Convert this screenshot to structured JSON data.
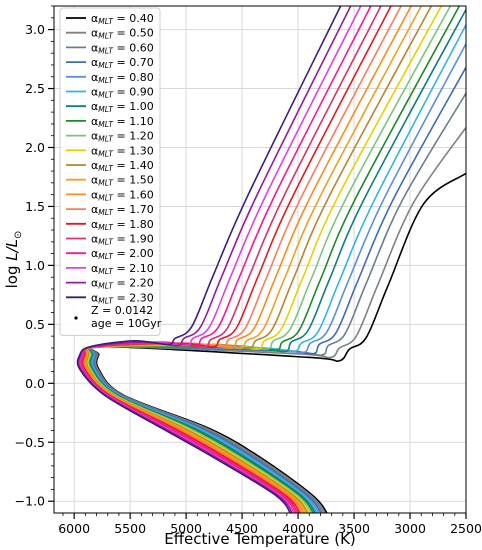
{
  "chart_data": {
    "type": "line",
    "xlabel": "Effective Temperature (K)",
    "ylabel": "log L/L_sun",
    "xlim": [
      6180,
      2500
    ],
    "ylim": [
      -1.1,
      3.2
    ],
    "x_reversed": true,
    "grid": true,
    "legend_position": "top-left",
    "x_ticks": [
      6000,
      5500,
      5000,
      4500,
      4000,
      3500,
      3000,
      2500
    ],
    "y_ticks": [
      -1.0,
      -0.5,
      0.0,
      0.5,
      1.0,
      1.5,
      2.0,
      2.5,
      3.0
    ],
    "x_tick_labels": [
      "6000",
      "5500",
      "5000",
      "4500",
      "4000",
      "3500",
      "3000",
      "2500"
    ],
    "y_tick_labels": [
      "−1.0",
      "−0.5",
      "0.0",
      "0.5",
      "1.0",
      "1.5",
      "2.0",
      "2.5",
      "3.0"
    ],
    "annotation": {
      "text_line1": "Z = 0.0142",
      "text_line2": "age = 10Gyr"
    },
    "series": [
      {
        "name": "0.40",
        "alpha": 0.4,
        "color": "#000000",
        "ms_top_teff": 3730,
        "ms_top_L": 0.17,
        "hook_teff": 3575,
        "hook_L": 0.17,
        "base_teff": 3500,
        "base_L": 0.27,
        "rgb_top_teff": 2500,
        "rgb_top_L": 1.78
      },
      {
        "name": "0.50",
        "alpha": 0.5,
        "color": "#808080",
        "ms_top_teff": 3830,
        "ms_top_L": 0.2,
        "hook_teff": 3650,
        "hook_L": 0.2,
        "base_teff": 3590,
        "base_L": 0.28,
        "rgb_top_teff": 2500,
        "rgb_top_L": 2.17
      },
      {
        "name": "0.60",
        "alpha": 0.6,
        "color": "#6a7e8c",
        "ms_top_teff": 3920,
        "ms_top_L": 0.22,
        "hook_teff": 3730,
        "hook_L": 0.22,
        "base_teff": 3690,
        "base_L": 0.3,
        "rgb_top_teff": 2500,
        "rgb_top_L": 2.46
      },
      {
        "name": "0.70",
        "alpha": 0.7,
        "color": "#3c6db3",
        "ms_top_teff": 4000,
        "ms_top_L": 0.23,
        "hook_teff": 3810,
        "hook_L": 0.23,
        "base_teff": 3770,
        "base_L": 0.31,
        "rgb_top_teff": 2500,
        "rgb_top_L": 2.68
      },
      {
        "name": "0.80",
        "alpha": 0.8,
        "color": "#5a8fe0",
        "ms_top_teff": 4090,
        "ms_top_L": 0.24,
        "hook_teff": 3900,
        "hook_L": 0.24,
        "base_teff": 3850,
        "base_L": 0.32,
        "rgb_top_teff": 2500,
        "rgb_top_L": 2.88
      },
      {
        "name": "0.90",
        "alpha": 0.9,
        "color": "#2fb4e8",
        "ms_top_teff": 4170,
        "ms_top_L": 0.25,
        "hook_teff": 3980,
        "hook_L": 0.25,
        "base_teff": 3930,
        "base_L": 0.32,
        "rgb_top_teff": 2500,
        "rgb_top_L": 3.04
      },
      {
        "name": "1.00",
        "alpha": 1.0,
        "color": "#0d7f7f",
        "ms_top_teff": 4250,
        "ms_top_L": 0.25,
        "hook_teff": 4060,
        "hook_L": 0.25,
        "base_teff": 4020,
        "base_L": 0.33,
        "rgb_top_teff": 2500,
        "rgb_top_L": 3.17
      },
      {
        "name": "1.10",
        "alpha": 1.1,
        "color": "#1f8a2a",
        "ms_top_teff": 4330,
        "ms_top_L": 0.26,
        "hook_teff": 4140,
        "hook_L": 0.26,
        "base_teff": 4100,
        "base_L": 0.33,
        "rgb_top_teff": 2560,
        "rgb_top_L": 3.2
      },
      {
        "name": "1.20",
        "alpha": 1.2,
        "color": "#7cc67c",
        "ms_top_teff": 4410,
        "ms_top_L": 0.27,
        "hook_teff": 4220,
        "hook_L": 0.27,
        "base_teff": 4180,
        "base_L": 0.34,
        "rgb_top_teff": 2640,
        "rgb_top_L": 3.2
      },
      {
        "name": "1.30",
        "alpha": 1.3,
        "color": "#e6d200",
        "ms_top_teff": 4490,
        "ms_top_L": 0.27,
        "hook_teff": 4300,
        "hook_L": 0.27,
        "base_teff": 4260,
        "base_L": 0.34,
        "rgb_top_teff": 2720,
        "rgb_top_L": 3.2
      },
      {
        "name": "1.40",
        "alpha": 1.4,
        "color": "#b8862e",
        "ms_top_teff": 4570,
        "ms_top_L": 0.28,
        "hook_teff": 4380,
        "hook_L": 0.28,
        "base_teff": 4340,
        "base_L": 0.34,
        "rgb_top_teff": 2810,
        "rgb_top_L": 3.2
      },
      {
        "name": "1.50",
        "alpha": 1.5,
        "color": "#f0a020",
        "ms_top_teff": 4650,
        "ms_top_L": 0.28,
        "hook_teff": 4460,
        "hook_L": 0.28,
        "base_teff": 4420,
        "base_L": 0.34,
        "rgb_top_teff": 2900,
        "rgb_top_L": 3.2
      },
      {
        "name": "1.60",
        "alpha": 1.6,
        "color": "#ff8a1a",
        "ms_top_teff": 4730,
        "ms_top_L": 0.28,
        "hook_teff": 4540,
        "hook_L": 0.28,
        "base_teff": 4500,
        "base_L": 0.35,
        "rgb_top_teff": 2990,
        "rgb_top_L": 3.2
      },
      {
        "name": "1.70",
        "alpha": 1.7,
        "color": "#ff7a5a",
        "ms_top_teff": 4810,
        "ms_top_L": 0.29,
        "hook_teff": 4620,
        "hook_L": 0.29,
        "base_teff": 4580,
        "base_L": 0.35,
        "rgb_top_teff": 3080,
        "rgb_top_L": 3.2
      },
      {
        "name": "1.80",
        "alpha": 1.8,
        "color": "#e8181e",
        "ms_top_teff": 4890,
        "ms_top_L": 0.29,
        "hook_teff": 4700,
        "hook_L": 0.29,
        "base_teff": 4660,
        "base_L": 0.35,
        "rgb_top_teff": 3170,
        "rgb_top_L": 3.2
      },
      {
        "name": "1.90",
        "alpha": 1.9,
        "color": "#e0306a",
        "ms_top_teff": 4970,
        "ms_top_L": 0.29,
        "hook_teff": 4780,
        "hook_L": 0.29,
        "base_teff": 4740,
        "base_L": 0.35,
        "rgb_top_teff": 3260,
        "rgb_top_L": 3.2
      },
      {
        "name": "2.00",
        "alpha": 2.0,
        "color": "#ff1493",
        "ms_top_teff": 5050,
        "ms_top_L": 0.3,
        "hook_teff": 4860,
        "hook_L": 0.3,
        "base_teff": 4820,
        "base_L": 0.36,
        "rgb_top_teff": 3350,
        "rgb_top_L": 3.2
      },
      {
        "name": "2.10",
        "alpha": 2.1,
        "color": "#e040e0",
        "ms_top_teff": 5130,
        "ms_top_L": 0.3,
        "hook_teff": 4940,
        "hook_L": 0.3,
        "base_teff": 4900,
        "base_L": 0.36,
        "rgb_top_teff": 3440,
        "rgb_top_L": 3.2
      },
      {
        "name": "2.20",
        "alpha": 2.2,
        "color": "#9a1a9a",
        "ms_top_teff": 5210,
        "ms_top_L": 0.3,
        "hook_teff": 5020,
        "hook_L": 0.3,
        "base_teff": 4980,
        "base_L": 0.36,
        "rgb_top_teff": 3530,
        "rgb_top_L": 3.2
      },
      {
        "name": "2.30",
        "alpha": 2.3,
        "color": "#3b1e78",
        "ms_top_teff": 5290,
        "ms_top_L": 0.31,
        "hook_teff": 5100,
        "hook_L": 0.31,
        "base_teff": 5060,
        "base_L": 0.36,
        "rgb_top_teff": 3620,
        "rgb_top_L": 3.2
      }
    ]
  }
}
